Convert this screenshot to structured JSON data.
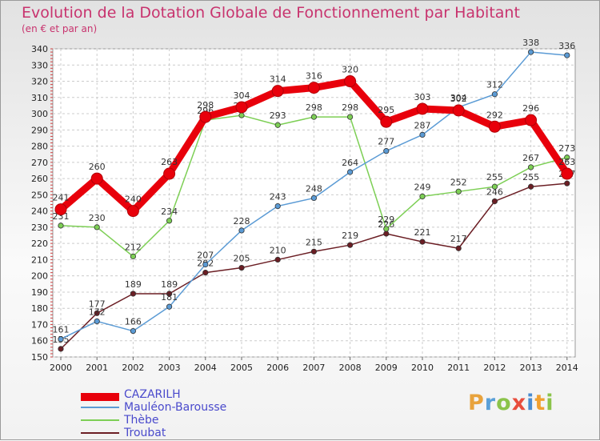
{
  "chart_data": {
    "type": "line",
    "title": "Evolution de la Dotation Globale de Fonctionnement par Habitant",
    "subtitle": "(en € et par an)",
    "x": [
      "2000",
      "2001",
      "2002",
      "2003",
      "2004",
      "2005",
      "2006",
      "2007",
      "2008",
      "2009",
      "2010",
      "2011",
      "2012",
      "2013",
      "2014"
    ],
    "ylim": [
      150,
      340
    ],
    "yticks": [
      150,
      160,
      170,
      180,
      190,
      200,
      210,
      220,
      230,
      240,
      250,
      260,
      270,
      280,
      290,
      300,
      310,
      320,
      330,
      340
    ],
    "grid": true,
    "legend_position": "bottom-left",
    "series": [
      {
        "name": "Troubat",
        "color": "#6b1e24",
        "values": [
          155,
          177,
          189,
          189,
          202,
          205,
          210,
          215,
          219,
          226,
          221,
          217,
          246,
          255,
          257
        ]
      },
      {
        "name": "Thèbe",
        "color": "#7dcf55",
        "values": [
          231,
          230,
          212,
          234,
          296,
          299,
          293,
          298,
          298,
          229,
          249,
          252,
          255,
          267,
          273
        ]
      },
      {
        "name": "Mauléon-Barousse",
        "color": "#5b9bd5",
        "values": [
          161,
          172,
          166,
          181,
          207,
          228,
          243,
          248,
          264,
          277,
          287,
          304,
          312,
          338,
          336
        ]
      },
      {
        "name": "CAZARILH",
        "color": "#e8000b",
        "values": [
          241,
          260,
          240,
          263,
          298,
          304,
          314,
          316,
          320,
          295,
          303,
          302,
          292,
          296,
          263
        ]
      }
    ],
    "value_labels": {
      "Troubat": [
        "155",
        "177",
        "189",
        "189",
        "202",
        "205",
        "210",
        "215",
        "219",
        "226",
        "221",
        "217",
        "246",
        "255",
        "257"
      ],
      "Thèbe": [
        "231",
        "230",
        "212",
        "234",
        "296",
        "299",
        "293",
        "298",
        "298",
        "229",
        "249",
        "252",
        "255",
        "267",
        "273"
      ],
      "Mauléon-Barousse": [
        "161",
        "172",
        "166",
        "181",
        "207",
        "228",
        "243",
        "248",
        "264",
        "277",
        "287",
        "304",
        "312",
        "338",
        "336"
      ],
      "CAZARILH": [
        "241",
        "260",
        "240",
        "263",
        "298",
        "304",
        "314",
        "316",
        "320",
        "295",
        "303",
        "302",
        "292",
        "296",
        "263"
      ]
    },
    "legend": [
      "CAZARILH",
      "Mauléon-Barousse",
      "Thèbe",
      "Troubat"
    ]
  },
  "logo": {
    "text": "Proxiti",
    "letters": [
      "P",
      "r",
      "o",
      "x",
      "i",
      "t",
      "i"
    ],
    "colors": [
      "#e8a33d",
      "#5aa0d8",
      "#8bc34a",
      "#e84d3d",
      "#4a8cd0",
      "#f0a030",
      "#8bc34a"
    ]
  }
}
